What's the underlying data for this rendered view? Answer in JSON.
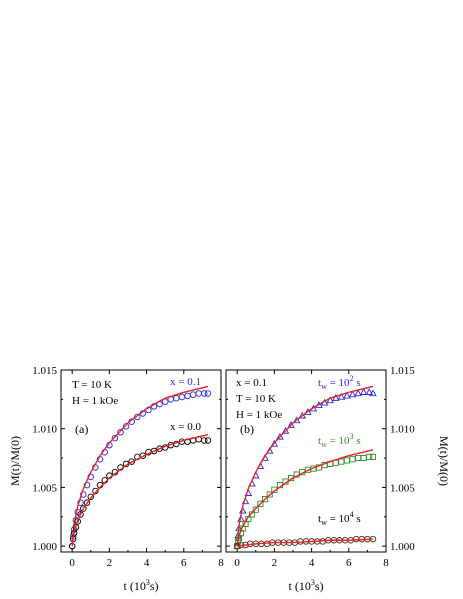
{
  "colors": {
    "fit": "#e8231d",
    "blue": "#2a2adf",
    "green": "#2d8e2d",
    "black": "#000000",
    "brown": "#4a2a1a"
  },
  "chart_data": [
    {
      "type": "scatter",
      "panel_label": "(a)",
      "xlabel_main": "t (10",
      "xlabel_sup": "3",
      "xlabel_tail": "s)",
      "ylabel": "M(t)/M(0)",
      "xlim": [
        -0.6,
        8.0
      ],
      "ylim": [
        0.9995,
        1.015
      ],
      "xticks": [
        "0",
        "2",
        "4",
        "6",
        "8"
      ],
      "yticks": [
        "1.000",
        "1.005",
        "1.010",
        "1.015"
      ],
      "conditions": [
        "T = 10 K",
        "H = 1 kOe"
      ],
      "series": [
        {
          "name": "x = 0.1",
          "marker": "circle",
          "color": "blue",
          "points": [
            [
              0.0,
              1.0
            ],
            [
              0.05,
              1.0008
            ],
            [
              0.1,
              1.0014
            ],
            [
              0.2,
              1.0022
            ],
            [
              0.3,
              1.0029
            ],
            [
              0.45,
              1.0037
            ],
            [
              0.6,
              1.0044
            ],
            [
              0.8,
              1.0052
            ],
            [
              1.0,
              1.0059
            ],
            [
              1.25,
              1.0067
            ],
            [
              1.5,
              1.0074
            ],
            [
              1.75,
              1.008
            ],
            [
              2.0,
              1.0086
            ],
            [
              2.3,
              1.0092
            ],
            [
              2.6,
              1.0097
            ],
            [
              2.9,
              1.0102
            ],
            [
              3.2,
              1.0106
            ],
            [
              3.5,
              1.011
            ],
            [
              3.8,
              1.0113
            ],
            [
              4.1,
              1.0116
            ],
            [
              4.4,
              1.0119
            ],
            [
              4.7,
              1.0121
            ],
            [
              5.0,
              1.0123
            ],
            [
              5.3,
              1.0125
            ],
            [
              5.6,
              1.0126
            ],
            [
              5.9,
              1.0127
            ],
            [
              6.2,
              1.0128
            ],
            [
              6.5,
              1.0129
            ],
            [
              6.8,
              1.013
            ],
            [
              7.1,
              1.013
            ],
            [
              7.3,
              1.013
            ]
          ],
          "fit": [
            [
              0.0,
              1.0
            ],
            [
              0.1,
              1.0018
            ],
            [
              0.3,
              1.0034
            ],
            [
              0.6,
              1.0049
            ],
            [
              1.0,
              1.0063
            ],
            [
              1.5,
              1.0077
            ],
            [
              2.0,
              1.0088
            ],
            [
              3.0,
              1.0105
            ],
            [
              4.0,
              1.0117
            ],
            [
              5.0,
              1.0126
            ],
            [
              6.0,
              1.0131
            ],
            [
              7.3,
              1.0136
            ]
          ]
        },
        {
          "name": "x = 0.0",
          "marker": "circle",
          "color": "black",
          "points": [
            [
              0.0,
              1.0
            ],
            [
              0.05,
              1.0006
            ],
            [
              0.1,
              1.0011
            ],
            [
              0.2,
              1.0016
            ],
            [
              0.3,
              1.0021
            ],
            [
              0.45,
              1.0027
            ],
            [
              0.6,
              1.0032
            ],
            [
              0.8,
              1.0037
            ],
            [
              1.0,
              1.0042
            ],
            [
              1.25,
              1.0047
            ],
            [
              1.5,
              1.0052
            ],
            [
              1.75,
              1.0056
            ],
            [
              2.0,
              1.006
            ],
            [
              2.3,
              1.0063
            ],
            [
              2.6,
              1.0067
            ],
            [
              2.9,
              1.007
            ],
            [
              3.2,
              1.0072
            ],
            [
              3.5,
              1.0076
            ],
            [
              3.8,
              1.0077
            ],
            [
              4.1,
              1.008
            ],
            [
              4.4,
              1.0081
            ],
            [
              4.7,
              1.0083
            ],
            [
              5.0,
              1.0084
            ],
            [
              5.3,
              1.0086
            ],
            [
              5.6,
              1.0087
            ],
            [
              5.9,
              1.0089
            ],
            [
              6.2,
              1.0089
            ],
            [
              6.5,
              1.009
            ],
            [
              6.8,
              1.0091
            ],
            [
              7.1,
              1.009
            ],
            [
              7.3,
              1.009
            ]
          ],
          "fit": [
            [
              0.0,
              1.0
            ],
            [
              0.1,
              1.0012
            ],
            [
              0.3,
              1.0022
            ],
            [
              0.6,
              1.0032
            ],
            [
              1.0,
              1.0041
            ],
            [
              1.5,
              1.005
            ],
            [
              2.0,
              1.0058
            ],
            [
              3.0,
              1.007
            ],
            [
              4.0,
              1.0078
            ],
            [
              5.0,
              1.0085
            ],
            [
              6.0,
              1.009
            ],
            [
              7.3,
              1.0095
            ]
          ]
        }
      ]
    },
    {
      "type": "scatter",
      "panel_label": "(b)",
      "xlabel_main": "t (10",
      "xlabel_sup": "3",
      "xlabel_tail": "s)",
      "ylabel": "M(t)/M(0)",
      "xlim": [
        -0.6,
        8.0
      ],
      "ylim": [
        0.9995,
        1.015
      ],
      "xticks": [
        "0",
        "2",
        "4",
        "6",
        "8"
      ],
      "yticks": [
        "1.000",
        "1.005",
        "1.010",
        "1.015"
      ],
      "conditions": [
        "x = 0.1",
        "T = 10 K",
        "H = 1 kOe"
      ],
      "series": [
        {
          "name_main": "t",
          "name_sub": "w",
          "name_mid": " = 10",
          "name_sup": "2",
          "name_tail": " s",
          "marker": "triangle",
          "color": "blue",
          "points": [
            [
              0.0,
              1.0
            ],
            [
              0.05,
              1.0009
            ],
            [
              0.1,
              1.0015
            ],
            [
              0.2,
              1.0023
            ],
            [
              0.3,
              1.003
            ],
            [
              0.45,
              1.0038
            ],
            [
              0.6,
              1.0045
            ],
            [
              0.8,
              1.0053
            ],
            [
              1.0,
              1.006
            ],
            [
              1.25,
              1.0068
            ],
            [
              1.5,
              1.0075
            ],
            [
              1.75,
              1.0081
            ],
            [
              2.0,
              1.0087
            ],
            [
              2.3,
              1.0093
            ],
            [
              2.6,
              1.0098
            ],
            [
              2.9,
              1.0103
            ],
            [
              3.2,
              1.0107
            ],
            [
              3.5,
              1.0111
            ],
            [
              3.8,
              1.0114
            ],
            [
              4.1,
              1.0117
            ],
            [
              4.4,
              1.012
            ],
            [
              4.7,
              1.0122
            ],
            [
              5.0,
              1.0124
            ],
            [
              5.3,
              1.0126
            ],
            [
              5.6,
              1.0127
            ],
            [
              5.9,
              1.0128
            ],
            [
              6.2,
              1.0129
            ],
            [
              6.5,
              1.013
            ],
            [
              6.8,
              1.0131
            ],
            [
              7.1,
              1.0131
            ],
            [
              7.3,
              1.013
            ]
          ],
          "fit": [
            [
              0.0,
              1.0
            ],
            [
              0.1,
              1.0018
            ],
            [
              0.3,
              1.0034
            ],
            [
              0.6,
              1.0049
            ],
            [
              1.0,
              1.0063
            ],
            [
              1.5,
              1.0077
            ],
            [
              2.0,
              1.0088
            ],
            [
              3.0,
              1.0105
            ],
            [
              4.0,
              1.0117
            ],
            [
              5.0,
              1.0126
            ],
            [
              6.0,
              1.0131
            ],
            [
              7.3,
              1.0136
            ]
          ]
        },
        {
          "name_main": "t",
          "name_sub": "w",
          "name_mid": " = 10",
          "name_sup": "3",
          "name_tail": " s",
          "marker": "square",
          "color": "green",
          "points": [
            [
              0.0,
              1.0
            ],
            [
              0.05,
              1.0004
            ],
            [
              0.1,
              1.0007
            ],
            [
              0.2,
              1.0011
            ],
            [
              0.3,
              1.0015
            ],
            [
              0.45,
              1.0019
            ],
            [
              0.6,
              1.0023
            ],
            [
              0.8,
              1.0027
            ],
            [
              1.0,
              1.0031
            ],
            [
              1.25,
              1.0036
            ],
            [
              1.5,
              1.004
            ],
            [
              1.75,
              1.0044
            ],
            [
              2.0,
              1.0048
            ],
            [
              2.3,
              1.0052
            ],
            [
              2.6,
              1.0055
            ],
            [
              2.9,
              1.0058
            ],
            [
              3.2,
              1.0061
            ],
            [
              3.5,
              1.0063
            ],
            [
              3.8,
              1.0065
            ],
            [
              4.1,
              1.0066
            ],
            [
              4.4,
              1.0067
            ],
            [
              4.7,
              1.0069
            ],
            [
              5.0,
              1.007
            ],
            [
              5.3,
              1.0071
            ],
            [
              5.6,
              1.0072
            ],
            [
              5.9,
              1.0073
            ],
            [
              6.2,
              1.0074
            ],
            [
              6.5,
              1.0075
            ],
            [
              6.8,
              1.0075
            ],
            [
              7.1,
              1.0076
            ],
            [
              7.3,
              1.0076
            ]
          ],
          "fit": [
            [
              0.0,
              1.0
            ],
            [
              0.1,
              1.0009
            ],
            [
              0.3,
              1.0017
            ],
            [
              0.6,
              1.0025
            ],
            [
              1.0,
              1.0032
            ],
            [
              1.5,
              1.004
            ],
            [
              2.0,
              1.0047
            ],
            [
              3.0,
              1.0058
            ],
            [
              4.0,
              1.0066
            ],
            [
              5.0,
              1.0072
            ],
            [
              6.0,
              1.0077
            ],
            [
              7.3,
              1.0082
            ]
          ]
        },
        {
          "name_main": "t",
          "name_sub": "w",
          "name_mid": " = 10",
          "name_sup": "4",
          "name_tail": " s",
          "marker": "circle",
          "color": "brown",
          "points": [
            [
              0.0,
              1.0
            ],
            [
              0.2,
              1.0001
            ],
            [
              0.45,
              1.0001
            ],
            [
              0.7,
              1.0002
            ],
            [
              1.0,
              1.0002
            ],
            [
              1.3,
              1.0002
            ],
            [
              1.6,
              1.0002
            ],
            [
              1.9,
              1.0003
            ],
            [
              2.2,
              1.0003
            ],
            [
              2.5,
              1.0003
            ],
            [
              2.8,
              1.0003
            ],
            [
              3.1,
              1.0003
            ],
            [
              3.4,
              1.0004
            ],
            [
              3.7,
              1.0004
            ],
            [
              4.0,
              1.0004
            ],
            [
              4.3,
              1.0004
            ],
            [
              4.6,
              1.0004
            ],
            [
              4.9,
              1.0005
            ],
            [
              5.2,
              1.0005
            ],
            [
              5.5,
              1.0005
            ],
            [
              5.8,
              1.0005
            ],
            [
              6.1,
              1.0005
            ],
            [
              6.4,
              1.0006
            ],
            [
              6.7,
              1.0006
            ],
            [
              7.0,
              1.0006
            ],
            [
              7.3,
              1.0006
            ]
          ],
          "fit": [
            [
              0.0,
              1.0
            ],
            [
              0.5,
              1.0001
            ],
            [
              1.0,
              1.0002
            ],
            [
              2.0,
              1.0003
            ],
            [
              3.0,
              1.0003
            ],
            [
              4.0,
              1.0004
            ],
            [
              5.0,
              1.0005
            ],
            [
              6.0,
              1.0005
            ],
            [
              7.3,
              1.0006
            ]
          ]
        }
      ]
    }
  ]
}
